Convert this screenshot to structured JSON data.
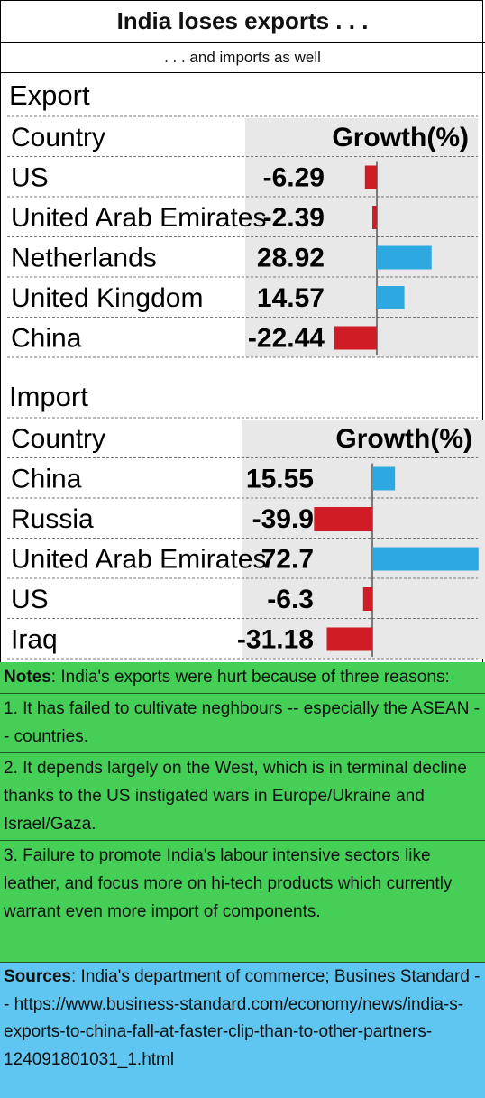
{
  "header": {
    "title": "India loses exports . . .",
    "subtitle": ". . . and imports as well"
  },
  "chart_data": [
    {
      "type": "bar",
      "orientation": "horizontal",
      "section_label": "Export",
      "column_headers": [
        "Country",
        "Growth(%)"
      ],
      "categories": [
        "US",
        "United Arab Emirates",
        "Netherlands",
        "United Kingdom",
        "China"
      ],
      "values": [
        -6.29,
        -2.39,
        28.92,
        14.57,
        -22.44
      ],
      "value_labels": [
        "-6.29",
        "-2.39",
        "28.92",
        "14.57",
        "-22.44"
      ],
      "colors": {
        "positive": "#2ea8e0",
        "negative": "#d01c25"
      }
    },
    {
      "type": "bar",
      "orientation": "horizontal",
      "section_label": "Import",
      "column_headers": [
        "Country",
        "Growth(%)"
      ],
      "categories": [
        "China",
        "Russia",
        "United Arab Emirates",
        "US",
        "Iraq"
      ],
      "values": [
        15.55,
        -39.9,
        72.7,
        -6.3,
        -31.18
      ],
      "value_labels": [
        "15.55",
        "-39.9",
        "72.7",
        "-6.3",
        "-31.18"
      ],
      "colors": {
        "positive": "#2ea8e0",
        "negative": "#d01c25"
      }
    }
  ],
  "notes": {
    "label": "Notes",
    "intro": ":  India's exports were hurt because of three reasons:",
    "items": [
      "1. It has failed to cultivate neghbours -- especially the ASEAN -- countries.",
      "2. It depends largely on the West, which is in terminal decline thanks to the US instigated wars in Europe/Ukraine and Israel/Gaza.",
      "3. Failure to promote India's labour intensive sectors like leather, and focus more on hi-tech products which currently warrant even more import of components."
    ]
  },
  "sources": {
    "label": "Sources",
    "text": ": India's department of commerce; Busines Standard -- https://www.business-standard.com/economy/news/india-s-exports-to-china-fall-at-faster-clip-than-to-other-partners-124091801031_1.html"
  },
  "colors": {
    "notes_bg": "#45cf56",
    "sources_bg": "#5ec6f1",
    "panel_bg": "#e8e8e8"
  }
}
